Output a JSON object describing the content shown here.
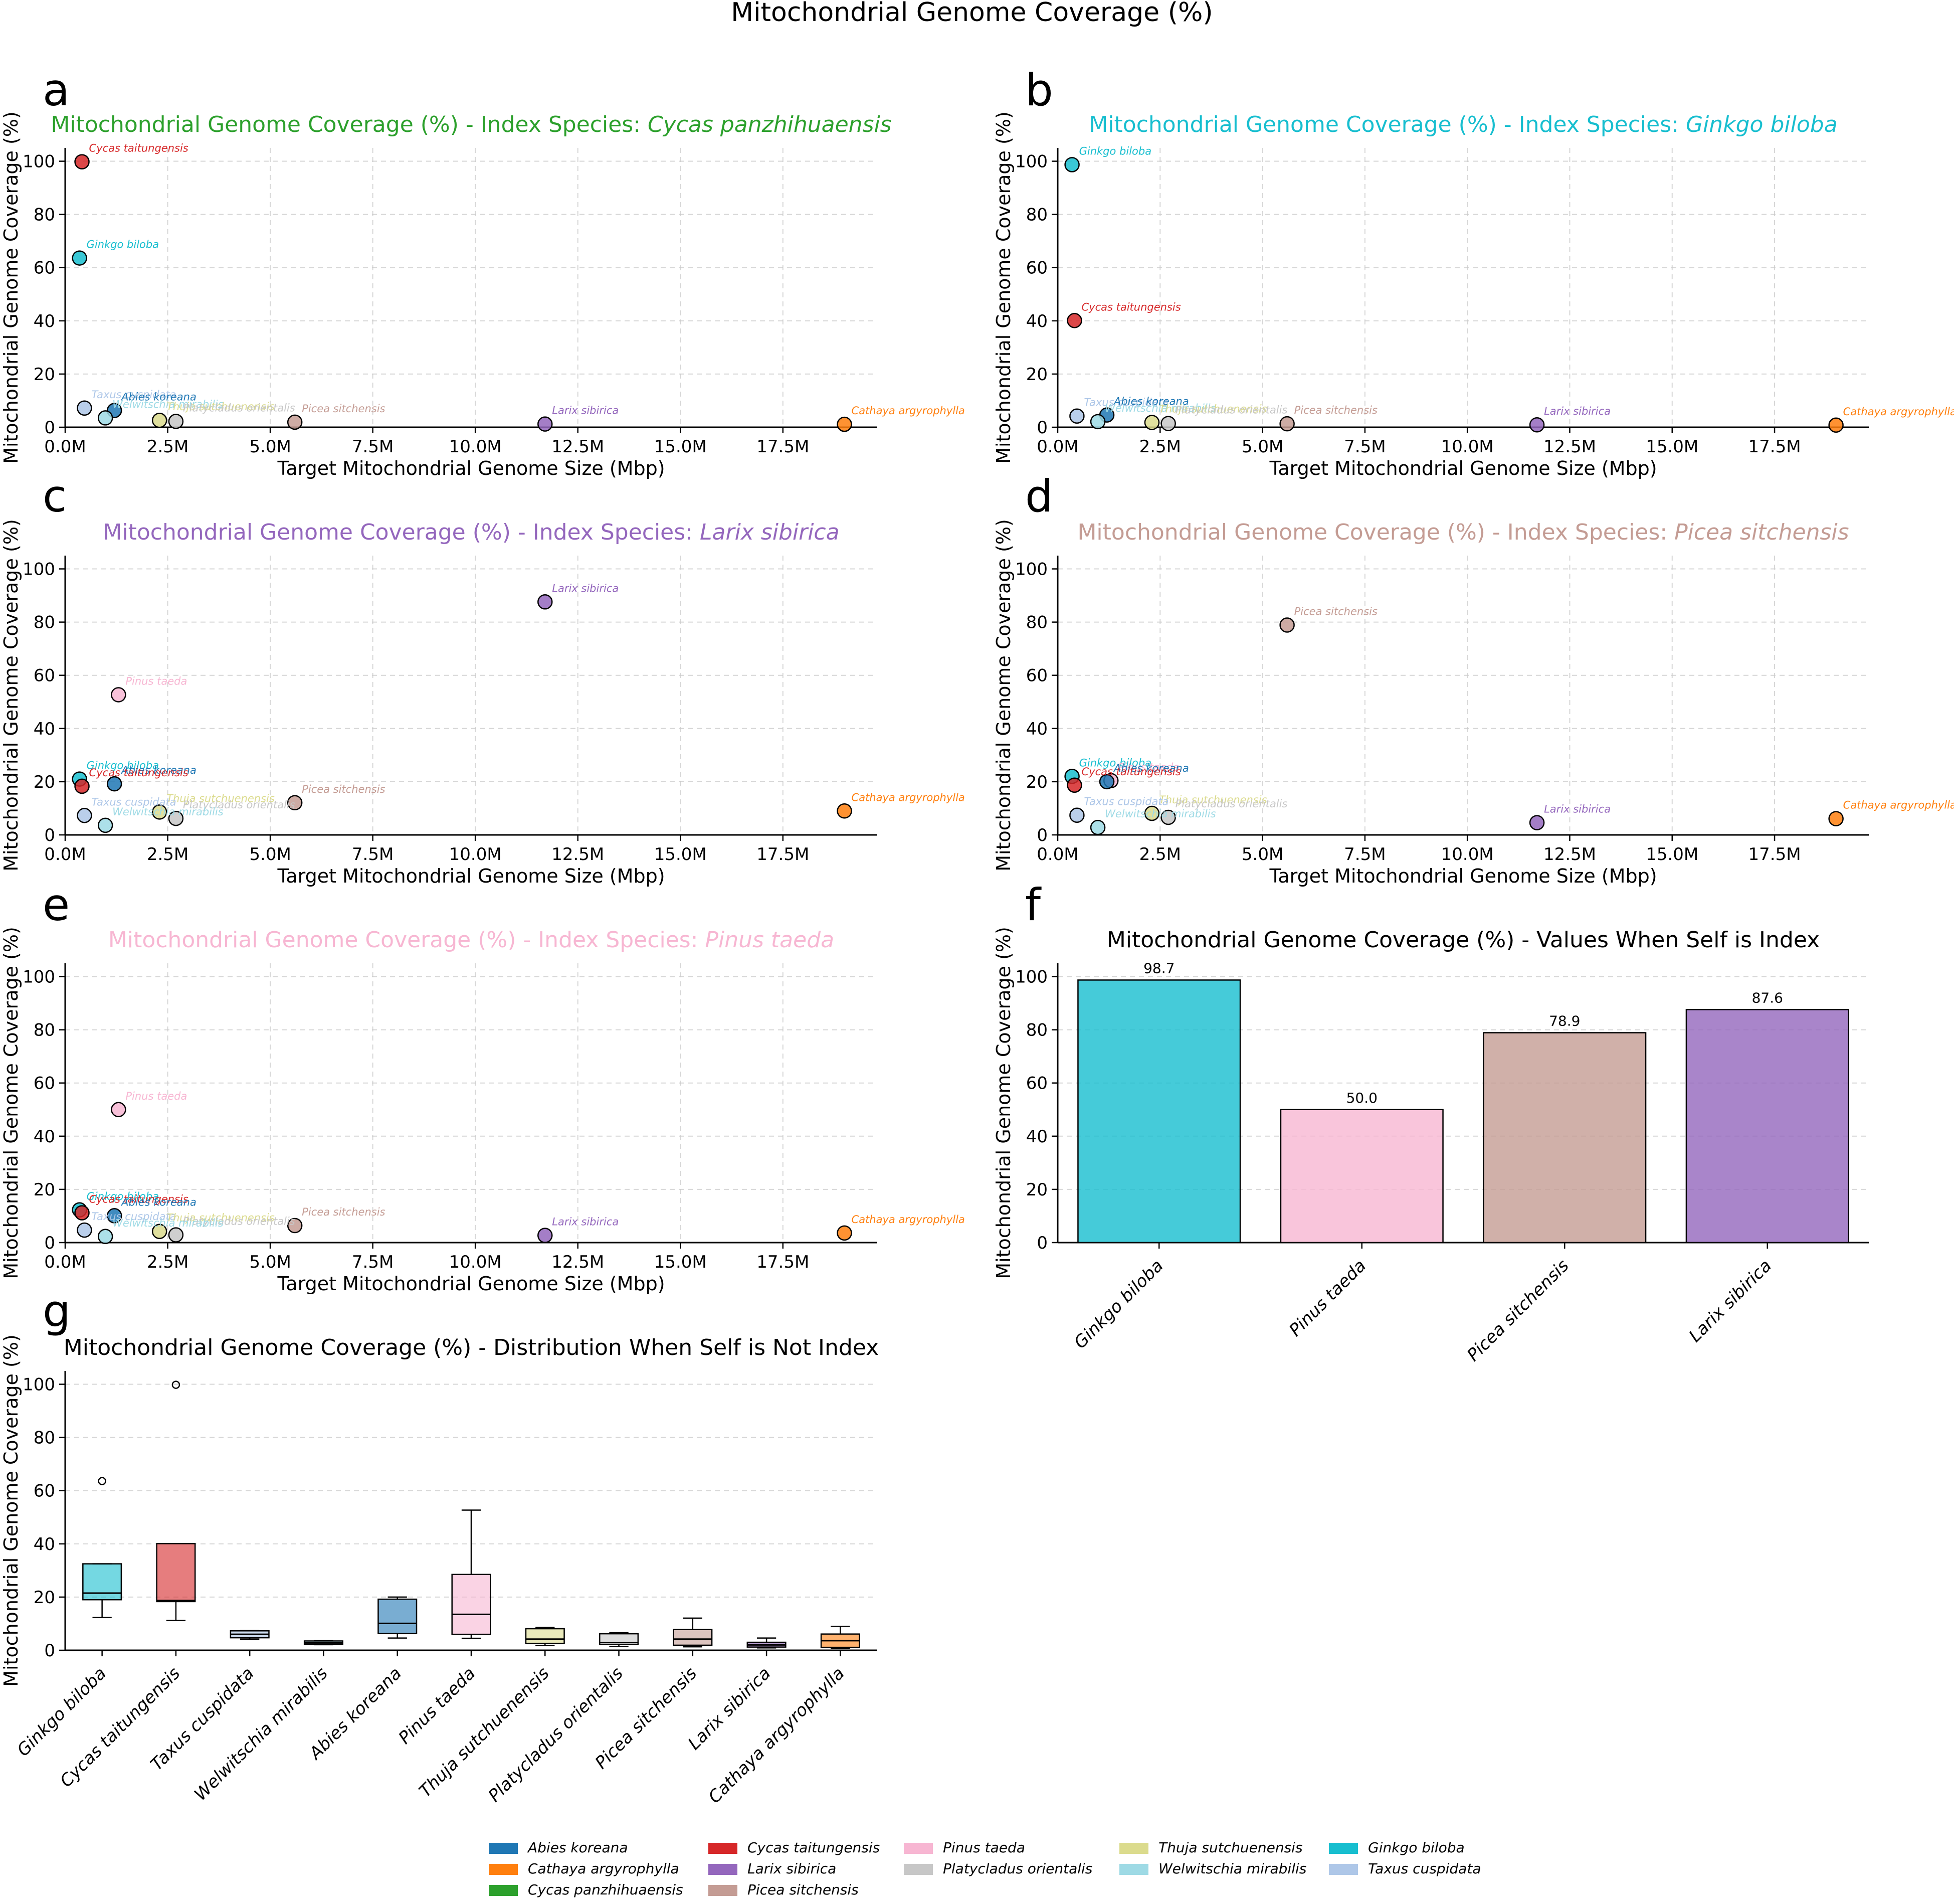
{
  "colors": {
    "Abies koreana": "#1f77b4",
    "Cathaya argyrophylla": "#ff7f0e",
    "Cycas panzhihuaensis": "#2ca02c",
    "Cycas taitungensis": "#d62728",
    "Larix sibirica": "#9467bd",
    "Picea sitchensis": "#c49c94",
    "Pinus taeda": "#f7b6d2",
    "Platycladus orientalis": "#c7c7c7",
    "Thuja sutchuenensis": "#dbdb8d",
    "Welwitschia mirabilis": "#9edae5",
    "Ginkgo biloba": "#17becf",
    "Taxus cuspidata": "#aec7e8"
  },
  "chart_data": {
    "title": "Mitochondrial Genome Coverage (%)",
    "scatter_axes": {
      "xlabel": "Target Mitochondrial Genome Size (Mbp)",
      "ylabel": "Mitochondrial Genome Coverage (%)",
      "xlim": [
        0,
        19.8
      ],
      "ylim": [
        0,
        105
      ],
      "xticks": [
        0,
        2.5,
        5,
        7.5,
        10,
        12.5,
        15,
        17.5
      ],
      "xtick_labels": [
        "0.0M",
        "2.5M",
        "5.0M",
        "7.5M",
        "10.0M",
        "12.5M",
        "15.0M",
        "17.5M"
      ],
      "yticks": [
        0,
        20,
        40,
        60,
        80,
        100
      ],
      "ytick_labels": [
        "0",
        "20",
        "40",
        "60",
        "80",
        "100"
      ]
    },
    "scatter_panels": [
      {
        "letter": "a",
        "type": "scatter",
        "title_prefix": "Mitochondrial Genome Coverage (%) - Index Species: ",
        "title_species": "Cycas panzhihuaensis",
        "points": [
          {
            "species": "Cycas taitungensis",
            "x": 0.41,
            "y": 99.8
          },
          {
            "species": "Ginkgo biloba",
            "x": 0.35,
            "y": 63.6
          },
          {
            "species": "Taxus cuspidata",
            "x": 0.47,
            "y": 7.2
          },
          {
            "species": "Abies koreana",
            "x": 1.2,
            "y": 6.3
          },
          {
            "species": "Welwitschia mirabilis",
            "x": 0.98,
            "y": 3.5
          },
          {
            "species": "Thuja sutchuenensis",
            "x": 2.3,
            "y": 2.6
          },
          {
            "species": "Platycladus orientalis",
            "x": 2.7,
            "y": 2.2
          },
          {
            "species": "Picea sitchensis",
            "x": 5.6,
            "y": 1.9
          },
          {
            "species": "Larix sibirica",
            "x": 11.7,
            "y": 1.2
          },
          {
            "species": "Cathaya argyrophylla",
            "x": 19.0,
            "y": 1.1
          }
        ]
      },
      {
        "letter": "b",
        "type": "scatter",
        "title_prefix": "Mitochondrial Genome Coverage (%) - Index Species: ",
        "title_species": "Ginkgo biloba",
        "points": [
          {
            "species": "Ginkgo biloba",
            "x": 0.35,
            "y": 98.7
          },
          {
            "species": "Cycas taitungensis",
            "x": 0.41,
            "y": 40.1
          },
          {
            "species": "Taxus cuspidata",
            "x": 0.47,
            "y": 4.2
          },
          {
            "species": "Abies koreana",
            "x": 1.2,
            "y": 4.6
          },
          {
            "species": "Welwitschia mirabilis",
            "x": 0.98,
            "y": 2.1
          },
          {
            "species": "Thuja sutchuenensis",
            "x": 2.3,
            "y": 1.8
          },
          {
            "species": "Platycladus orientalis",
            "x": 2.7,
            "y": 1.4
          },
          {
            "species": "Picea sitchensis",
            "x": 5.6,
            "y": 1.3
          },
          {
            "species": "Larix sibirica",
            "x": 11.7,
            "y": 0.9
          },
          {
            "species": "Cathaya argyrophylla",
            "x": 19.0,
            "y": 0.8
          }
        ]
      },
      {
        "letter": "c",
        "type": "scatter",
        "title_prefix": "Mitochondrial Genome Coverage (%) - Index Species: ",
        "title_species": "Larix sibirica",
        "points": [
          {
            "species": "Larix sibirica",
            "x": 11.7,
            "y": 87.6
          },
          {
            "species": "Pinus taeda",
            "x": 1.3,
            "y": 52.7
          },
          {
            "species": "Ginkgo biloba",
            "x": 0.35,
            "y": 21.0
          },
          {
            "species": "Abies koreana",
            "x": 1.2,
            "y": 19.2
          },
          {
            "species": "Cycas taitungensis",
            "x": 0.41,
            "y": 18.3
          },
          {
            "species": "Picea sitchensis",
            "x": 5.6,
            "y": 12.1
          },
          {
            "species": "Cathaya argyrophylla",
            "x": 19.0,
            "y": 9.0
          },
          {
            "species": "Thuja sutchuenensis",
            "x": 2.3,
            "y": 8.6
          },
          {
            "species": "Taxus cuspidata",
            "x": 0.47,
            "y": 7.3
          },
          {
            "species": "Platycladus orientalis",
            "x": 2.7,
            "y": 6.2
          },
          {
            "species": "Welwitschia mirabilis",
            "x": 0.98,
            "y": 3.6
          }
        ]
      },
      {
        "letter": "d",
        "type": "scatter",
        "title_prefix": "Mitochondrial Genome Coverage (%) - Index Species: ",
        "title_species": "Picea sitchensis",
        "points": [
          {
            "species": "Picea sitchensis",
            "x": 5.6,
            "y": 78.9
          },
          {
            "species": "Ginkgo biloba",
            "x": 0.35,
            "y": 22.0
          },
          {
            "species": "Pinus taeda",
            "x": 1.3,
            "y": 20.4
          },
          {
            "species": "Abies koreana",
            "x": 1.2,
            "y": 20.0
          },
          {
            "species": "Cycas taitungensis",
            "x": 0.41,
            "y": 18.7
          },
          {
            "species": "Thuja sutchuenensis",
            "x": 2.3,
            "y": 8.1
          },
          {
            "species": "Taxus cuspidata",
            "x": 0.47,
            "y": 7.4
          },
          {
            "species": "Platycladus orientalis",
            "x": 2.7,
            "y": 6.6
          },
          {
            "species": "Cathaya argyrophylla",
            "x": 19.0,
            "y": 6.1
          },
          {
            "species": "Larix sibirica",
            "x": 11.7,
            "y": 4.6
          },
          {
            "species": "Welwitschia mirabilis",
            "x": 0.98,
            "y": 2.8
          }
        ]
      },
      {
        "letter": "e",
        "type": "scatter",
        "title_prefix": "Mitochondrial Genome Coverage (%) - Index Species: ",
        "title_species": "Pinus taeda",
        "points": [
          {
            "species": "Pinus taeda",
            "x": 1.3,
            "y": 50.0
          },
          {
            "species": "Ginkgo biloba",
            "x": 0.35,
            "y": 12.3
          },
          {
            "species": "Cycas taitungensis",
            "x": 0.41,
            "y": 11.2
          },
          {
            "species": "Abies koreana",
            "x": 1.2,
            "y": 10.1
          },
          {
            "species": "Picea sitchensis",
            "x": 5.6,
            "y": 6.4
          },
          {
            "species": "Taxus cuspidata",
            "x": 0.47,
            "y": 4.7
          },
          {
            "species": "Thuja sutchuenensis",
            "x": 2.3,
            "y": 4.2
          },
          {
            "species": "Cathaya argyrophylla",
            "x": 19.0,
            "y": 3.6
          },
          {
            "species": "Platycladus orientalis",
            "x": 2.7,
            "y": 2.9
          },
          {
            "species": "Larix sibirica",
            "x": 11.7,
            "y": 2.7
          },
          {
            "species": "Welwitschia mirabilis",
            "x": 0.98,
            "y": 2.3
          }
        ]
      }
    ],
    "bar_panel": {
      "letter": "f",
      "type": "bar",
      "title": "Mitochondrial Genome Coverage (%) - Values When Self is Index",
      "ylabel": "Mitochondrial Genome Coverage (%)",
      "ylim": [
        0,
        105
      ],
      "yticks": [
        0,
        20,
        40,
        60,
        80,
        100
      ],
      "ytick_labels": [
        "0",
        "20",
        "40",
        "60",
        "80",
        "100"
      ],
      "categories": [
        "Ginkgo biloba",
        "Pinus taeda",
        "Picea sitchensis",
        "Larix sibirica"
      ],
      "values": [
        98.7,
        50.0,
        78.9,
        87.6
      ],
      "value_labels": [
        "98.7",
        "50.0",
        "78.9",
        "87.6"
      ]
    },
    "box_panel": {
      "letter": "g",
      "type": "box",
      "title": "Mitochondrial Genome Coverage (%) - Distribution When Self is Not Index",
      "ylabel": "Mitochondrial Genome Coverage (%)",
      "ylim": [
        0,
        105
      ],
      "yticks": [
        0,
        20,
        40,
        60,
        80,
        100
      ],
      "ytick_labels": [
        "0",
        "20",
        "40",
        "60",
        "80",
        "100"
      ],
      "boxes": [
        {
          "species": "Ginkgo biloba",
          "whislo": 12.3,
          "q1": 19.0,
          "med": 21.5,
          "q3": 32.5,
          "whishi": 32.5,
          "fliers": [
            63.6
          ]
        },
        {
          "species": "Cycas taitungensis",
          "whislo": 11.2,
          "q1": 18.3,
          "med": 18.7,
          "q3": 40.1,
          "whishi": 40.1,
          "fliers": [
            99.8
          ]
        },
        {
          "species": "Taxus cuspidata",
          "whislo": 4.2,
          "q1": 4.7,
          "med": 6.0,
          "q3": 7.3,
          "whishi": 7.4,
          "fliers": []
        },
        {
          "species": "Welwitschia mirabilis",
          "whislo": 2.1,
          "q1": 2.3,
          "med": 2.8,
          "q3": 3.5,
          "whishi": 3.6,
          "fliers": []
        },
        {
          "species": "Abies koreana",
          "whislo": 4.6,
          "q1": 6.3,
          "med": 10.1,
          "q3": 19.2,
          "whishi": 20.0,
          "fliers": []
        },
        {
          "species": "Pinus taeda",
          "whislo": 4.5,
          "q1": 6.0,
          "med": 13.5,
          "q3": 28.5,
          "whishi": 52.7,
          "fliers": []
        },
        {
          "species": "Thuja sutchuenensis",
          "whislo": 1.8,
          "q1": 2.6,
          "med": 4.2,
          "q3": 8.1,
          "whishi": 8.6,
          "fliers": []
        },
        {
          "species": "Platycladus orientalis",
          "whislo": 1.4,
          "q1": 2.2,
          "med": 2.9,
          "q3": 6.2,
          "whishi": 6.6,
          "fliers": []
        },
        {
          "species": "Picea sitchensis",
          "whislo": 1.3,
          "q1": 1.9,
          "med": 4.2,
          "q3": 7.8,
          "whishi": 12.1,
          "fliers": []
        },
        {
          "species": "Larix sibirica",
          "whislo": 0.9,
          "q1": 1.2,
          "med": 2.0,
          "q3": 3.0,
          "whishi": 4.6,
          "fliers": []
        },
        {
          "species": "Cathaya argyrophylla",
          "whislo": 0.8,
          "q1": 1.1,
          "med": 3.6,
          "q3": 6.1,
          "whishi": 9.0,
          "fliers": []
        }
      ]
    },
    "legend": {
      "placement": "bottom-center",
      "entries": [
        "Abies koreana",
        "Cathaya argyrophylla",
        "Cycas panzhihuaensis",
        "Cycas taitungensis",
        "Larix sibirica",
        "Picea sitchensis",
        "Pinus taeda",
        "Platycladus orientalis",
        "Thuja sutchuenensis",
        "Welwitschia mirabilis",
        "Ginkgo biloba",
        "Taxus cuspidata"
      ]
    }
  }
}
